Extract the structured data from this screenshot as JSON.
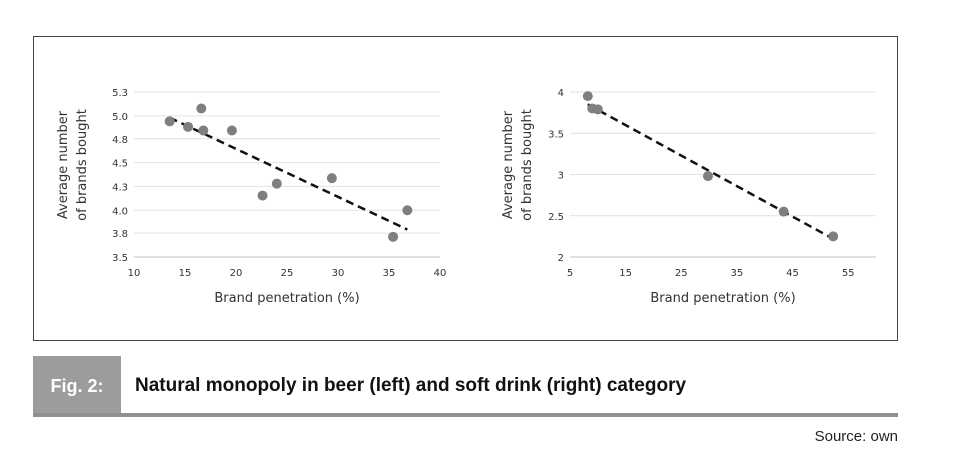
{
  "figure": {
    "tag": "Fig. 2:",
    "caption": "Natural monopoly in beer (left) and soft drink (right) category",
    "source": "Source: own"
  },
  "chart_data": [
    {
      "type": "scatter",
      "xlabel": "Brand penetration (%)",
      "ylabel_lines": [
        "Average number",
        "of brands bought"
      ],
      "xlim": [
        10,
        40
      ],
      "ylim": [
        3.5,
        5.3
      ],
      "x_ticks": [
        10,
        15,
        20,
        25,
        30,
        35,
        40
      ],
      "x_tick_labels": [
        "10",
        "15",
        "20",
        "25",
        "30",
        "35",
        "40"
      ],
      "y_ticks": [
        3.5,
        3.76,
        4.01,
        4.27,
        4.53,
        4.79,
        5.04,
        5.3
      ],
      "y_tick_labels": [
        "3.5",
        "3.8",
        "4.0",
        "4.3",
        "4.5",
        "4.8",
        "5.0",
        "5.3"
      ],
      "grid": true,
      "points": [
        {
          "x": 13.5,
          "y": 4.98
        },
        {
          "x": 15.3,
          "y": 4.92
        },
        {
          "x": 16.6,
          "y": 5.12
        },
        {
          "x": 16.8,
          "y": 4.88
        },
        {
          "x": 19.6,
          "y": 4.88
        },
        {
          "x": 22.6,
          "y": 4.17
        },
        {
          "x": 24.0,
          "y": 4.3
        },
        {
          "x": 29.4,
          "y": 4.36
        },
        {
          "x": 35.4,
          "y": 3.72
        },
        {
          "x": 36.8,
          "y": 4.01
        }
      ],
      "trendline": {
        "x": [
          13.5,
          36.8
        ],
        "y": [
          5.02,
          3.8
        ]
      }
    },
    {
      "type": "scatter",
      "xlabel": "Brand penetration (%)",
      "ylabel_lines": [
        "Average number",
        "of brands bought"
      ],
      "xlim": [
        5,
        60
      ],
      "ylim": [
        2,
        4
      ],
      "x_ticks": [
        5,
        15,
        25,
        35,
        45,
        55
      ],
      "x_tick_labels": [
        "5",
        "15",
        "25",
        "35",
        "45",
        "55"
      ],
      "y_ticks": [
        2,
        2.5,
        3,
        3.5,
        4
      ],
      "y_tick_labels": [
        "2",
        "2.5",
        "3",
        "3.5",
        "4"
      ],
      "grid": true,
      "points": [
        {
          "x": 8.2,
          "y": 3.95
        },
        {
          "x": 9.0,
          "y": 3.8
        },
        {
          "x": 10.0,
          "y": 3.79
        },
        {
          "x": 29.8,
          "y": 2.98
        },
        {
          "x": 43.4,
          "y": 2.55
        },
        {
          "x": 52.3,
          "y": 2.25
        }
      ],
      "trendline": {
        "x": [
          8.2,
          52.3
        ],
        "y": [
          3.85,
          2.22
        ]
      }
    }
  ]
}
